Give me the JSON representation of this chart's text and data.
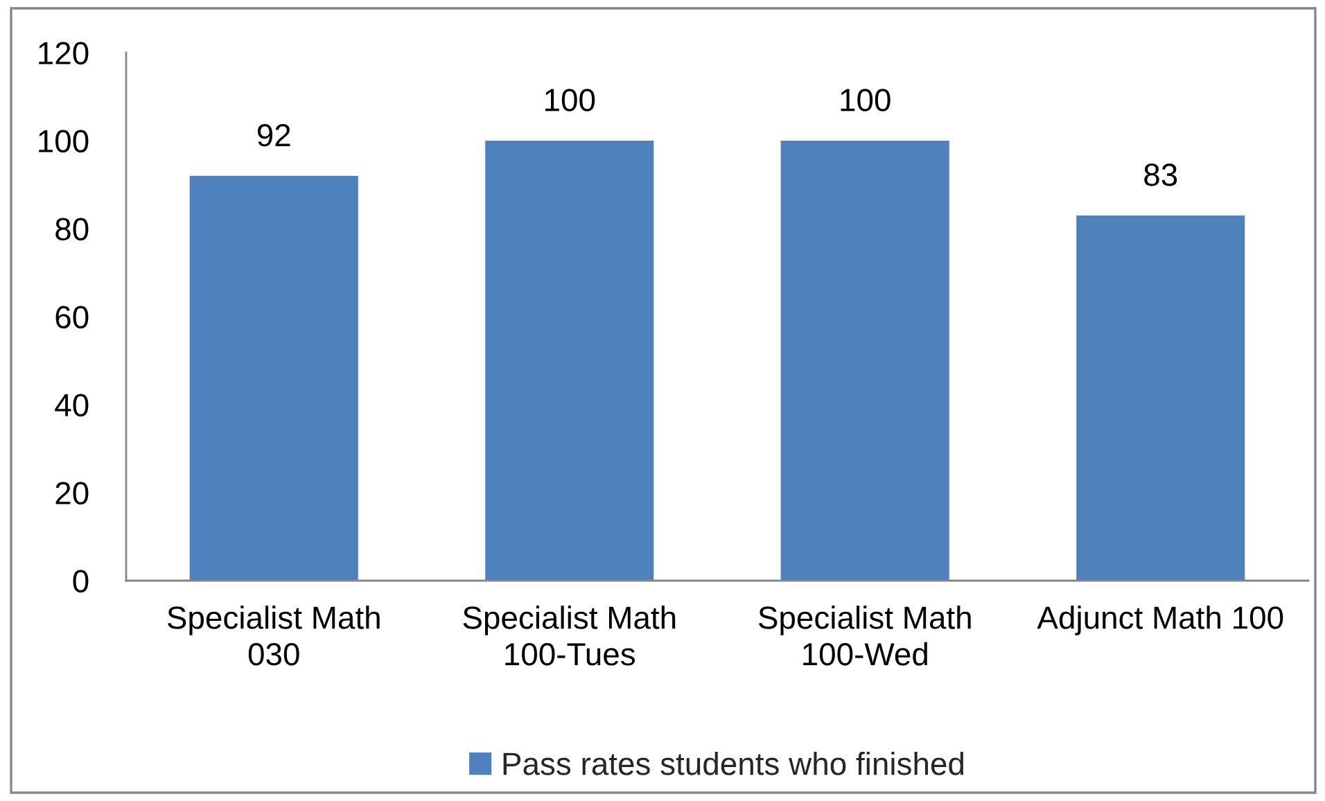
{
  "chart_data": {
    "type": "bar",
    "categories": [
      "Specialist Math\n030",
      "Specialist Math\n100-Tues",
      "Specialist Math\n100-Wed",
      "Adjunct Math 100"
    ],
    "series": [
      {
        "name": "Pass rates students who finished",
        "color": "#4f81bd",
        "values": [
          92,
          100,
          100,
          83
        ]
      }
    ],
    "ylim": [
      0,
      120
    ],
    "yticks": [
      0,
      20,
      40,
      60,
      80,
      100,
      120
    ],
    "data_labels": true,
    "legend": "bottom"
  }
}
